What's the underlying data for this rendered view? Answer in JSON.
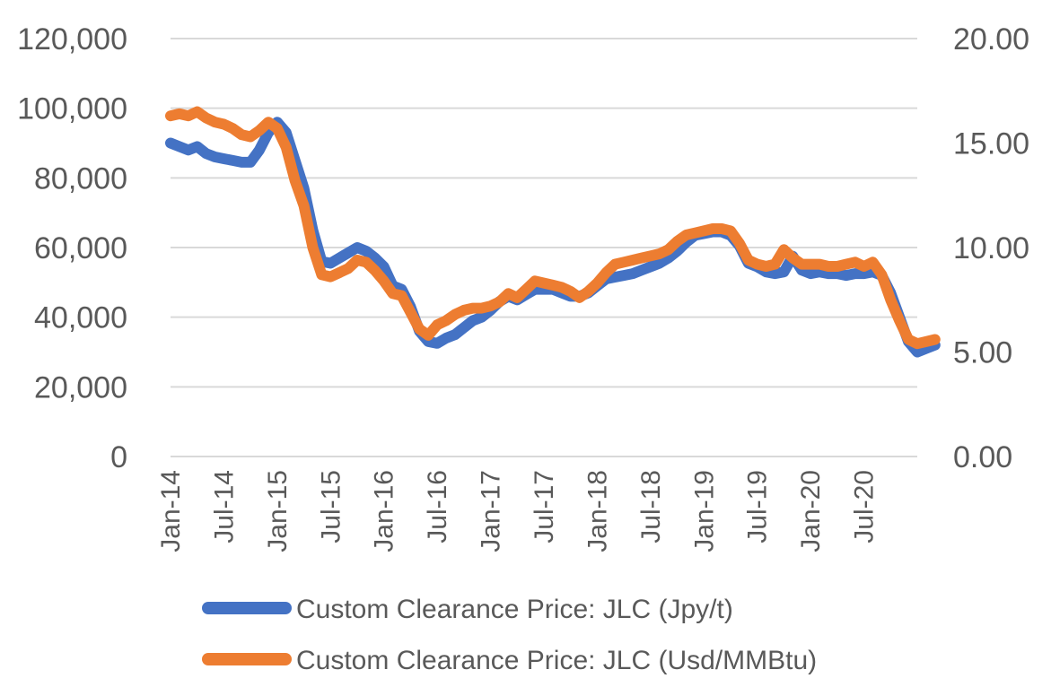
{
  "chart_data": {
    "type": "line",
    "title": "",
    "xlabel": "",
    "ylabel_left": "",
    "ylabel_right": "",
    "x_tick_labels": [
      "Jan-14",
      "Jul-14",
      "Jan-15",
      "Jul-15",
      "Jan-16",
      "Jul-16",
      "Jan-17",
      "Jul-17",
      "Jan-18",
      "Jul-18",
      "Jan-19",
      "Jul-19",
      "Jan-20",
      "Jul-20"
    ],
    "left_axis": {
      "ylim": [
        0,
        120000
      ],
      "ticks": [
        "0",
        "20,000",
        "40,000",
        "60,000",
        "80,000",
        "100,000",
        "120,000"
      ]
    },
    "right_axis": {
      "ylim": [
        0,
        20
      ],
      "ticks": [
        "0.00",
        "5.00",
        "10.00",
        "15.00",
        "20.00"
      ]
    },
    "grid": true,
    "legend_position": "bottom",
    "series": [
      {
        "name": "Custom Clearance Price: JLC (Jpy/t)",
        "axis": "left",
        "color": "#4472C4",
        "x_start": "Jan-14",
        "frequency": "monthly",
        "values": [
          90000,
          89000,
          88000,
          89000,
          87000,
          86000,
          85500,
          85000,
          84500,
          84500,
          88000,
          93000,
          96000,
          93000,
          85000,
          77000,
          65000,
          56000,
          55500,
          57000,
          58500,
          60000,
          59000,
          57000,
          54500,
          49000,
          48000,
          43000,
          36000,
          33000,
          32500,
          34000,
          35000,
          37000,
          39000,
          40000,
          42000,
          44500,
          46000,
          45000,
          46500,
          48000,
          48000,
          48000,
          47000,
          46000,
          46000,
          47000,
          49000,
          51000,
          51500,
          52000,
          52500,
          53500,
          54500,
          55500,
          57000,
          59000,
          61500,
          63500,
          64000,
          64500,
          64500,
          63500,
          60500,
          55500,
          54500,
          53000,
          52500,
          53000,
          57500,
          53500,
          52500,
          53000,
          52500,
          52500,
          52000,
          52500,
          52500,
          53000,
          52000,
          47000,
          40000,
          33000,
          30000,
          31000,
          32000
        ]
      },
      {
        "name": "Custom Clearance Price: JLC (Usd/MMBtu)",
        "axis": "right",
        "color": "#ED7D31",
        "x_start": "Jan-14",
        "frequency": "monthly",
        "values": [
          16.3,
          16.4,
          16.3,
          16.5,
          16.2,
          16.0,
          15.9,
          15.7,
          15.4,
          15.3,
          15.6,
          16.0,
          15.7,
          14.8,
          13.2,
          12.0,
          10.0,
          8.7,
          8.6,
          8.8,
          9.0,
          9.4,
          9.3,
          8.9,
          8.4,
          7.8,
          7.7,
          6.9,
          6.1,
          5.8,
          6.3,
          6.5,
          6.8,
          7.0,
          7.1,
          7.1,
          7.2,
          7.4,
          7.8,
          7.6,
          8.0,
          8.4,
          8.3,
          8.2,
          8.1,
          7.9,
          7.6,
          7.9,
          8.3,
          8.8,
          9.2,
          9.3,
          9.4,
          9.5,
          9.6,
          9.7,
          9.9,
          10.3,
          10.6,
          10.7,
          10.8,
          10.9,
          10.9,
          10.8,
          10.2,
          9.4,
          9.2,
          9.1,
          9.2,
          9.9,
          9.5,
          9.2,
          9.2,
          9.2,
          9.1,
          9.1,
          9.2,
          9.3,
          9.1,
          9.3,
          8.7,
          7.5,
          6.5,
          5.6,
          5.4,
          5.5,
          5.6
        ]
      }
    ]
  }
}
